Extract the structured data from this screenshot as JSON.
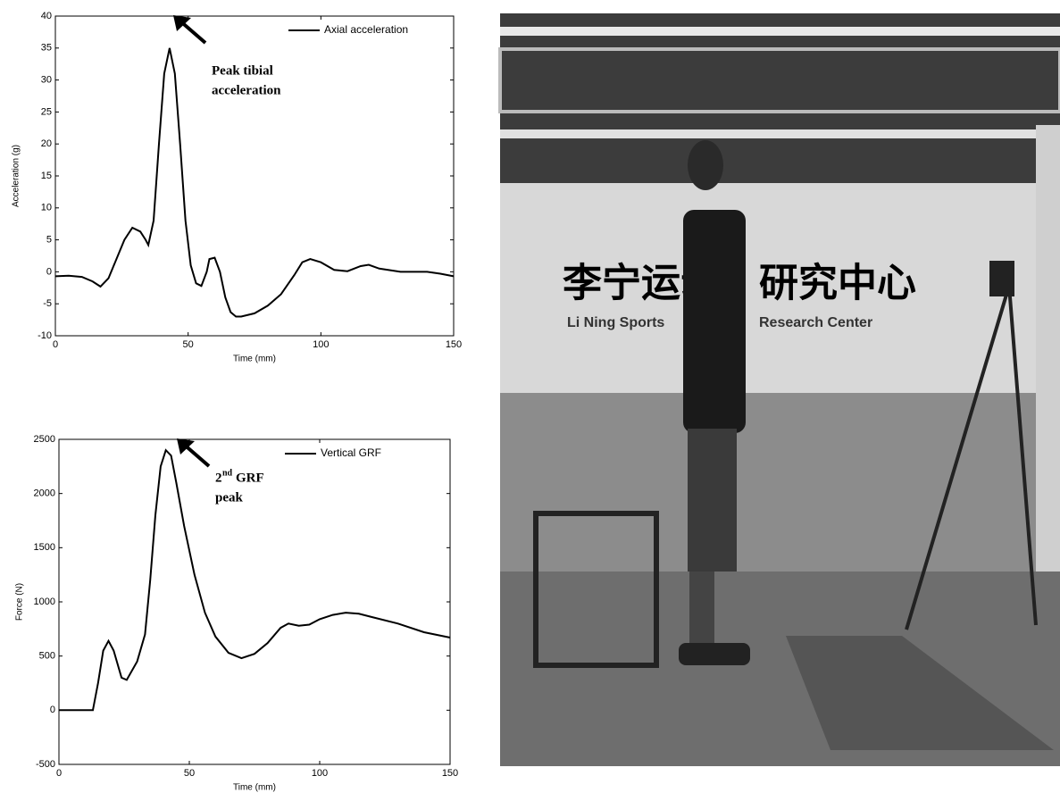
{
  "chart_data": [
    {
      "type": "line",
      "x_label": "Time (mm)",
      "y_label": "Acceleration (g)",
      "x": [
        0,
        5,
        10,
        14,
        17,
        20,
        23,
        26,
        29,
        32,
        34,
        35,
        37,
        39,
        41,
        43,
        45,
        47,
        49,
        51,
        53,
        55,
        57,
        58,
        60,
        62,
        64,
        66,
        68,
        70,
        75,
        80,
        85,
        90,
        93,
        96,
        100,
        105,
        110,
        115,
        118,
        122,
        130,
        140,
        145,
        150
      ],
      "series": [
        {
          "name": "Axial acceleration",
          "color": "#000000",
          "values": [
            -0.7,
            -0.6,
            -0.8,
            -1.5,
            -2.3,
            -1,
            2,
            5,
            6.9,
            6.3,
            5,
            4.2,
            8,
            20,
            31,
            35,
            31,
            20,
            8,
            1,
            -1.8,
            -2.2,
            0,
            2,
            2.2,
            0,
            -4,
            -6.3,
            -7,
            -7,
            -6.5,
            -5.3,
            -3.5,
            -0.5,
            1.5,
            2,
            1.5,
            0.3,
            0.1,
            0.9,
            1.1,
            0.5,
            0,
            0,
            -0.3,
            -0.7
          ]
        }
      ],
      "xlim": [
        0,
        150
      ],
      "xticks": [
        0,
        50,
        100,
        150
      ],
      "ylim": [
        -10,
        40
      ],
      "yticks": [
        -10,
        -5,
        0,
        5,
        10,
        15,
        20,
        25,
        30,
        35,
        40
      ],
      "legend": "upper right",
      "annotation": {
        "lines": [
          "Peak tibial",
          "acceleration"
        ]
      }
    },
    {
      "type": "line",
      "x_label": "Time (mm)",
      "y_label": "Force (N)",
      "x": [
        0,
        10,
        13,
        15,
        17,
        19,
        21,
        24,
        26,
        30,
        33,
        35,
        37,
        39,
        41,
        43,
        45,
        48,
        52,
        56,
        60,
        65,
        70,
        75,
        80,
        85,
        88,
        92,
        96,
        100,
        105,
        110,
        115,
        120,
        130,
        140,
        150
      ],
      "series": [
        {
          "name": "Vertical GRF",
          "color": "#000000",
          "values": [
            0,
            0,
            0,
            250,
            550,
            640,
            550,
            300,
            280,
            450,
            700,
            1200,
            1800,
            2250,
            2400,
            2350,
            2100,
            1700,
            1250,
            900,
            680,
            530,
            480,
            520,
            620,
            760,
            800,
            780,
            790,
            840,
            880,
            900,
            890,
            860,
            800,
            720,
            670
          ]
        }
      ],
      "xlim": [
        0,
        150
      ],
      "xticks": [
        0,
        50,
        100,
        150
      ],
      "ylim": [
        -500,
        2500
      ],
      "yticks": [
        -500,
        0,
        500,
        1000,
        1500,
        2000,
        2500
      ],
      "legend": "upper right",
      "annotation": {
        "number": "2",
        "superscript": "nd",
        "rest": "GRF",
        "line2": "peak"
      }
    }
  ],
  "photo": {
    "sign_line1": "Li Ning Sports",
    "sign_line2": "Research Center"
  }
}
